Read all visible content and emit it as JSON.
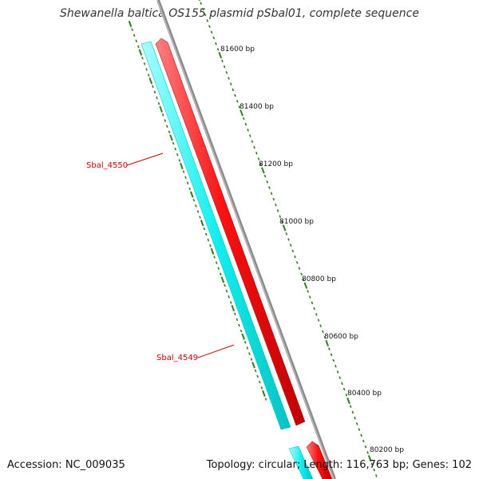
{
  "title": "Shewanella baltica OS155 plasmid pSbal01, complete sequence",
  "footer": {
    "accession": "Accession: NC_009035",
    "topology": "Topology: circular; Length: 116,763 bp; Genes: 102"
  },
  "ruler": {
    "labels": [
      "81600 bp",
      "81400 bp",
      "81200 bp",
      "81000 bp",
      "80800 bp",
      "80600 bp",
      "80400 bp",
      "80200 bp"
    ]
  },
  "genes": [
    {
      "name": "Sbal_4550"
    },
    {
      "name": "Sbal_4549"
    }
  ],
  "colors": {
    "forward_strand": "#ff0000",
    "reverse_strand": "#00ffff",
    "backbone": "#888888",
    "ticks": "#2e7d1e",
    "label": "#cc0000"
  }
}
